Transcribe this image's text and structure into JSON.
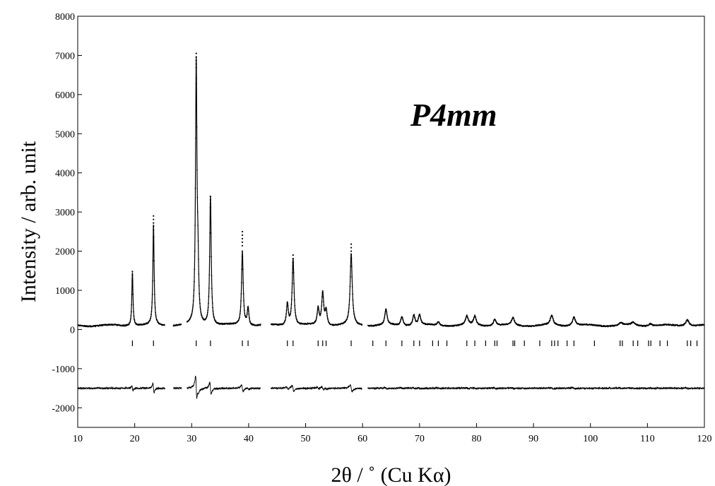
{
  "chart_data": {
    "type": "line",
    "xlabel": "2θ / ˚ (Cu Kα)",
    "ylabel": "Intensity / arb. unit",
    "annotation": "P4mm",
    "xlim": [
      10,
      120
    ],
    "ylim": [
      -2500,
      8000
    ],
    "x_ticks": [
      10,
      20,
      30,
      40,
      50,
      60,
      70,
      80,
      90,
      100,
      110,
      120
    ],
    "y_ticks": [
      -2000,
      -1000,
      0,
      1000,
      2000,
      3000,
      4000,
      5000,
      6000,
      7000,
      8000
    ],
    "grid": false,
    "background": 100,
    "difference_offset": -1500,
    "excluded_regions": [
      [
        25.3,
        26.8
      ],
      [
        28.2,
        29.2
      ],
      [
        42.1,
        43.9
      ],
      [
        59.9,
        60.9
      ]
    ],
    "peaks": [
      {
        "pos": 19.6,
        "height": 1350
      },
      {
        "pos": 23.3,
        "height": 2550
      },
      {
        "pos": 30.8,
        "height": 6600
      },
      {
        "pos": 31.1,
        "height": 1200
      },
      {
        "pos": 33.3,
        "height": 3300
      },
      {
        "pos": 38.9,
        "height": 1900
      },
      {
        "pos": 39.9,
        "height": 450
      },
      {
        "pos": 46.8,
        "height": 560
      },
      {
        "pos": 47.8,
        "height": 1700
      },
      {
        "pos": 52.2,
        "height": 420
      },
      {
        "pos": 53.0,
        "height": 820
      },
      {
        "pos": 53.6,
        "height": 380
      },
      {
        "pos": 58.0,
        "height": 1800
      },
      {
        "pos": 64.1,
        "height": 400
      },
      {
        "pos": 66.9,
        "height": 230
      },
      {
        "pos": 69.0,
        "height": 270
      },
      {
        "pos": 70.0,
        "height": 260
      },
      {
        "pos": 73.3,
        "height": 90
      },
      {
        "pos": 78.3,
        "height": 230
      },
      {
        "pos": 79.7,
        "height": 230
      },
      {
        "pos": 83.2,
        "height": 170
      },
      {
        "pos": 86.4,
        "height": 190
      },
      {
        "pos": 93.2,
        "height": 240
      },
      {
        "pos": 97.1,
        "height": 220
      },
      {
        "pos": 105.3,
        "height": 70
      },
      {
        "pos": 107.5,
        "height": 80
      },
      {
        "pos": 110.5,
        "height": 60
      },
      {
        "pos": 117.0,
        "height": 160
      }
    ],
    "observed_above_calc": [
      {
        "pos": 19.6,
        "value": 1480
      },
      {
        "pos": 23.3,
        "value": 2900
      },
      {
        "pos": 30.8,
        "value": 7050
      },
      {
        "pos": 33.3,
        "value": 3400
      },
      {
        "pos": 38.9,
        "value": 2500
      },
      {
        "pos": 47.8,
        "value": 1900
      },
      {
        "pos": 58.0,
        "value": 2180
      }
    ],
    "reflection_markers": [
      19.6,
      23.3,
      30.8,
      33.3,
      38.9,
      39.9,
      46.8,
      47.8,
      52.2,
      53.0,
      53.6,
      58.0,
      61.8,
      64.1,
      66.9,
      69.0,
      70.0,
      72.3,
      73.3,
      74.8,
      78.3,
      79.7,
      81.6,
      83.2,
      83.6,
      86.4,
      86.7,
      88.4,
      91.1,
      93.2,
      93.7,
      94.3,
      95.9,
      97.1,
      100.7,
      105.2,
      105.6,
      107.5,
      108.3,
      110.2,
      110.6,
      112.2,
      113.5,
      117.0,
      117.6,
      118.7
    ]
  }
}
